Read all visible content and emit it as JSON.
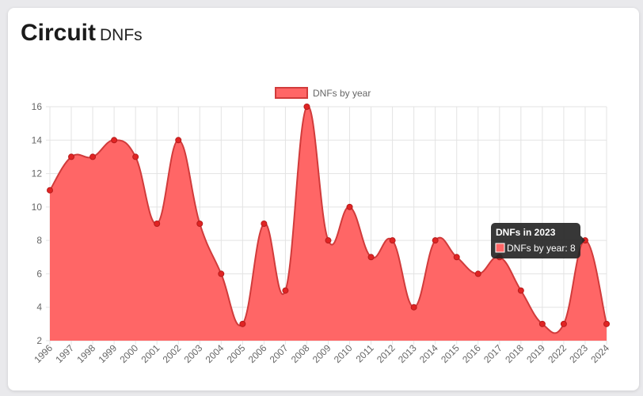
{
  "header": {
    "title": "Circuit",
    "subtitle": "DNFs"
  },
  "chart_data": {
    "type": "area",
    "categories": [
      "1996",
      "1997",
      "1998",
      "1999",
      "2000",
      "2001",
      "2002",
      "2003",
      "2004",
      "2005",
      "2006",
      "2007",
      "2008",
      "2009",
      "2010",
      "2011",
      "2012",
      "2013",
      "2014",
      "2015",
      "2016",
      "2017",
      "2018",
      "2019",
      "2022",
      "2023",
      "2024"
    ],
    "series": [
      {
        "name": "DNFs by year",
        "values": [
          11,
          13,
          13,
          14,
          13,
          9,
          14,
          9,
          6,
          3,
          9,
          5,
          16,
          8,
          10,
          7,
          8,
          4,
          8,
          7,
          6,
          7,
          5,
          3,
          3,
          8,
          3
        ]
      }
    ],
    "ylim": [
      2,
      16
    ],
    "yticks": [
      2,
      4,
      6,
      8,
      10,
      12,
      14,
      16
    ],
    "grid": true,
    "legend": "top-center",
    "colors": {
      "fill": "#ff6666",
      "line": "#d13b3b",
      "point": "#e02424",
      "tooltip_bg": "#262626"
    },
    "tooltip": {
      "title": "DNFs in 2023",
      "label": "DNFs by year: 8",
      "category": "2023"
    }
  }
}
